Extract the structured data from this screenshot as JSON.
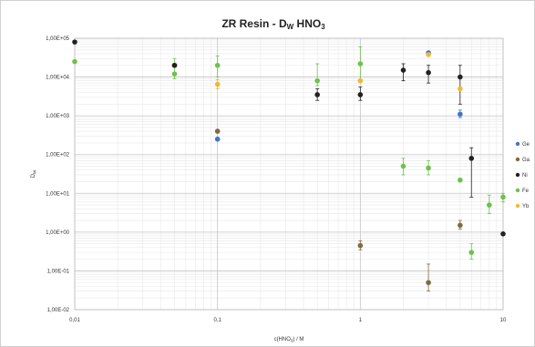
{
  "chart_data": {
    "type": "scatter",
    "title": "ZR Resin - D",
    "title_sub": "W",
    "title_tail": " HNO",
    "title_tail_sub": "3",
    "xlabel": "c(HNO",
    "xlabel_sub": "3",
    "xlabel_tail": ") / M",
    "ylabel": "D",
    "ylabel_sub": "W",
    "x_scale": "log",
    "y_scale": "log",
    "xlim": [
      0.01,
      10
    ],
    "ylim": [
      0.01,
      100000
    ],
    "x_ticks": [
      {
        "value": 0.01,
        "label": "0,01"
      },
      {
        "value": 0.1,
        "label": "0,1"
      },
      {
        "value": 1,
        "label": "1"
      },
      {
        "value": 10,
        "label": "10"
      }
    ],
    "y_ticks": [
      {
        "value": 100000,
        "label": "1,00E+05"
      },
      {
        "value": 10000,
        "label": "1,00E+04"
      },
      {
        "value": 1000,
        "label": "1,00E+03"
      },
      {
        "value": 100,
        "label": "1,00E+02"
      },
      {
        "value": 10,
        "label": "1,00E+01"
      },
      {
        "value": 1,
        "label": "1,00E+00"
      },
      {
        "value": 0.1,
        "label": "1,00E-01"
      },
      {
        "value": 0.01,
        "label": "1,00E-02"
      }
    ],
    "grid": true,
    "legend_position": "right",
    "series": [
      {
        "name": "Ge",
        "color": "#4472c4",
        "points": [
          {
            "x": 0.1,
            "y": 250
          },
          {
            "x": 3,
            "y": 42000,
            "err": [
              38000,
              46000
            ]
          },
          {
            "x": 5,
            "y": 1100,
            "err": [
              900,
              1400
            ]
          }
        ]
      },
      {
        "name": "Ga",
        "color": "#7f6a40",
        "points": [
          {
            "x": 0.05,
            "y": 20000
          },
          {
            "x": 0.1,
            "y": 400
          },
          {
            "x": 1,
            "y": 0.45,
            "err": [
              0.35,
              0.6
            ]
          },
          {
            "x": 3,
            "y": 0.05,
            "err": [
              0.03,
              0.15
            ]
          },
          {
            "x": 5,
            "y": 1.5,
            "err": [
              1.2,
              2
            ]
          }
        ]
      },
      {
        "name": "Ni",
        "color": "#222222",
        "points": [
          {
            "x": 0.01,
            "y": 80000
          },
          {
            "x": 0.05,
            "y": 20000
          },
          {
            "x": 0.5,
            "y": 3500,
            "err": [
              2500,
              5000
            ]
          },
          {
            "x": 1,
            "y": 3500,
            "err": [
              2500,
              5500
            ]
          },
          {
            "x": 2,
            "y": 15000,
            "err": [
              8000,
              22000
            ]
          },
          {
            "x": 3,
            "y": 13000,
            "err": [
              7000,
              20000
            ]
          },
          {
            "x": 5,
            "y": 10000,
            "err": [
              2000,
              20000
            ]
          },
          {
            "x": 6,
            "y": 80,
            "err": [
              8,
              150
            ]
          },
          {
            "x": 10,
            "y": 0.9
          }
        ]
      },
      {
        "name": "Fe",
        "color": "#6cc24a",
        "points": [
          {
            "x": 0.01,
            "y": 25000
          },
          {
            "x": 0.05,
            "y": 12000,
            "err": [
              9000,
              30000
            ]
          },
          {
            "x": 0.1,
            "y": 20000,
            "err": [
              10000,
              35000
            ]
          },
          {
            "x": 0.5,
            "y": 8000,
            "err": [
              6000,
              22000
            ]
          },
          {
            "x": 1,
            "y": 22000,
            "err": [
              8000,
              60000
            ]
          },
          {
            "x": 2,
            "y": 50,
            "err": [
              30,
              80
            ]
          },
          {
            "x": 3,
            "y": 45,
            "err": [
              30,
              70
            ]
          },
          {
            "x": 5,
            "y": 22
          },
          {
            "x": 6,
            "y": 0.3,
            "err": [
              0.2,
              0.5
            ]
          },
          {
            "x": 8,
            "y": 5,
            "err": [
              3,
              9
            ]
          },
          {
            "x": 10,
            "y": 8,
            "err": [
              6,
              10
            ]
          }
        ]
      },
      {
        "name": "Yb",
        "color": "#f2b830",
        "points": [
          {
            "x": 0.1,
            "y": 6500,
            "err": [
              5000,
              8500
            ]
          },
          {
            "x": 1,
            "y": 8000
          },
          {
            "x": 3,
            "y": 38000
          },
          {
            "x": 5,
            "y": 5000
          }
        ]
      }
    ]
  }
}
